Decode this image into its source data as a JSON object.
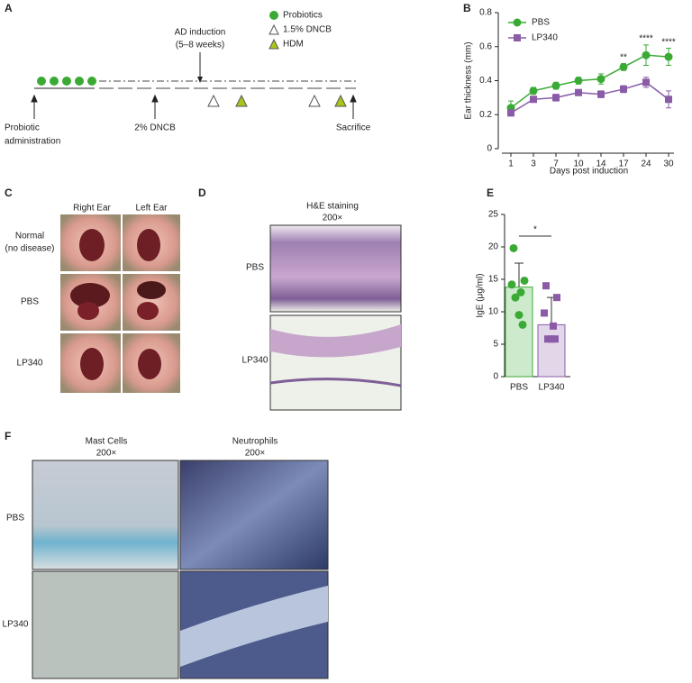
{
  "panel_a": {
    "label": "A",
    "legend": [
      "Probiotics",
      "1.5% DNCB",
      "HDM"
    ],
    "induction": [
      "AD induction",
      "(5–8 weeks)"
    ],
    "start": [
      "Probiotic",
      "administration"
    ],
    "dncb": "2% DNCB",
    "end": "Sacrifice"
  },
  "chart_data": [
    {
      "type": "line",
      "label": "B",
      "xlabel": "Days post induction",
      "ylabel": "Ear thickness (mm)",
      "categories": [
        "1",
        "3",
        "7",
        "10",
        "14",
        "17",
        "24",
        "30"
      ],
      "ylim": [
        0,
        0.8
      ],
      "yticks": [
        0,
        0.2,
        0.4,
        0.6,
        0.8
      ],
      "legend": "upper left",
      "series": [
        {
          "name": "PBS",
          "color": "#3aaa35",
          "marker": "circle",
          "values": [
            0.24,
            0.34,
            0.37,
            0.4,
            0.41,
            0.48,
            0.55,
            0.54
          ],
          "errors": [
            0.04,
            0.02,
            0.02,
            0.02,
            0.03,
            0.02,
            0.06,
            0.05
          ]
        },
        {
          "name": "LP340",
          "color": "#8a5ca8",
          "marker": "square",
          "values": [
            0.21,
            0.29,
            0.3,
            0.33,
            0.32,
            0.35,
            0.39,
            0.29
          ],
          "errors": [
            0.01,
            0.01,
            0.02,
            0.01,
            0.02,
            0.02,
            0.03,
            0.05
          ]
        }
      ],
      "significance": [
        null,
        null,
        null,
        null,
        null,
        "**",
        "****",
        "****"
      ]
    },
    {
      "type": "bar",
      "label": "E",
      "ylabel": "IgE (μg/ml)",
      "categories": [
        "PBS",
        "LP340"
      ],
      "values": [
        13.8,
        8.0
      ],
      "errors": [
        3.7,
        4.2
      ],
      "colors": [
        "#3aaa35",
        "#8a5ca8"
      ],
      "markers": [
        "circle",
        "square"
      ],
      "points": [
        [
          19.8,
          14.8,
          14.2,
          13.0,
          12.2,
          9.5,
          8.0
        ],
        [
          14.0,
          12.2,
          9.8,
          7.8,
          5.8,
          5.8,
          5.8
        ]
      ],
      "ylim": [
        0,
        25
      ],
      "yticks": [
        0,
        5,
        10,
        15,
        20,
        25
      ],
      "significance": "*"
    }
  ],
  "panel_c": {
    "label": "C",
    "columns": [
      "Right Ear",
      "Left Ear"
    ],
    "rows": [
      [
        "Normal",
        "(no disease)"
      ],
      [
        "PBS"
      ],
      [
        "LP340"
      ]
    ]
  },
  "panel_d": {
    "label": "D",
    "title": [
      "H&E staining",
      "200×"
    ],
    "rows": [
      "PBS",
      "LP340"
    ]
  },
  "panel_f": {
    "label": "F",
    "columns": [
      [
        "Mast Cells",
        "200×"
      ],
      [
        "Neutrophils",
        "200×"
      ]
    ],
    "rows": [
      "PBS",
      "LP340"
    ]
  }
}
